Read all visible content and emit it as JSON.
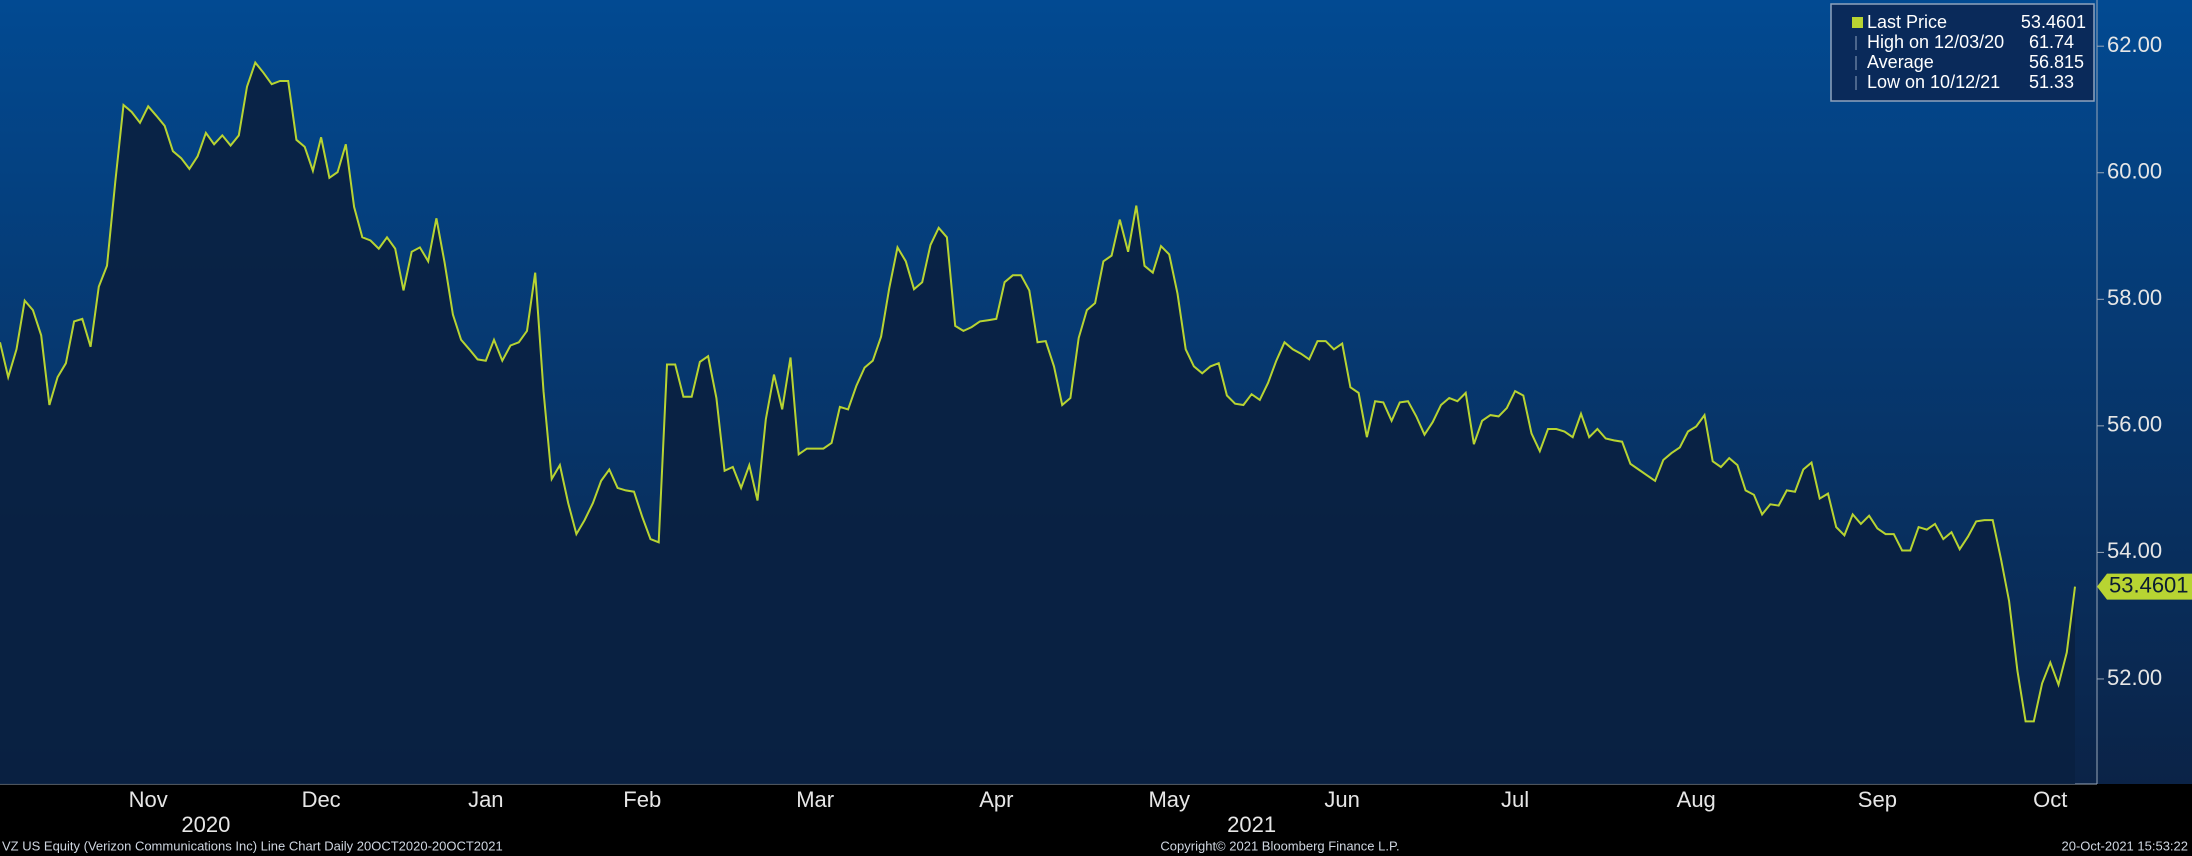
{
  "chart_data": {
    "type": "line",
    "series": [
      {
        "name": "Last Price",
        "color": "#b8d432",
        "values": [
          57.32,
          56.77,
          57.21,
          57.98,
          57.83,
          57.43,
          56.33,
          56.77,
          56.99,
          57.65,
          57.69,
          57.25,
          58.2,
          58.53,
          59.86,
          61.07,
          60.96,
          60.79,
          61.05,
          60.9,
          60.74,
          60.34,
          60.23,
          60.06,
          60.26,
          60.63,
          60.45,
          60.59,
          60.43,
          60.59,
          61.36,
          61.74,
          61.58,
          61.4,
          61.45,
          61.45,
          60.52,
          60.41,
          60.03,
          60.56,
          59.92,
          60.01,
          60.45,
          59.46,
          58.98,
          58.93,
          58.8,
          58.98,
          58.8,
          58.14,
          58.75,
          58.82,
          58.6,
          59.28,
          58.58,
          57.76,
          57.36,
          57.21,
          57.05,
          57.03,
          57.36,
          57.03,
          57.27,
          57.32,
          57.5,
          58.42,
          56.55,
          55.16,
          55.38,
          54.78,
          54.29,
          54.51,
          54.78,
          55.13,
          55.31,
          55.02,
          54.98,
          54.96,
          54.56,
          54.21,
          54.16,
          56.97,
          56.97,
          56.46,
          56.46,
          57.01,
          57.1,
          56.44,
          55.29,
          55.35,
          55.02,
          55.38,
          54.82,
          56.1,
          56.81,
          56.26,
          57.08,
          55.55,
          55.64,
          55.64,
          55.64,
          55.73,
          56.3,
          56.26,
          56.63,
          56.92,
          57.03,
          57.41,
          58.18,
          58.82,
          58.6,
          58.16,
          58.27,
          58.86,
          59.13,
          58.98,
          57.58,
          57.5,
          57.56,
          57.65,
          57.67,
          57.69,
          58.27,
          58.38,
          58.38,
          58.14,
          57.32,
          57.34,
          56.94,
          56.33,
          56.44,
          57.39,
          57.83,
          57.94,
          58.6,
          58.69,
          59.26,
          58.75,
          59.48,
          58.53,
          58.42,
          58.84,
          58.71,
          58.09,
          57.21,
          56.94,
          56.83,
          56.94,
          56.99,
          56.48,
          56.35,
          56.33,
          56.5,
          56.41,
          56.68,
          57.03,
          57.32,
          57.21,
          57.14,
          57.05,
          57.34,
          57.34,
          57.21,
          57.3,
          56.61,
          56.52,
          55.82,
          56.39,
          56.37,
          56.08,
          56.37,
          56.39,
          56.15,
          55.86,
          56.06,
          56.33,
          56.44,
          56.39,
          56.52,
          55.71,
          56.08,
          56.17,
          56.15,
          56.28,
          56.55,
          56.48,
          55.88,
          55.6,
          55.95,
          55.95,
          55.91,
          55.82,
          56.19,
          55.82,
          55.95,
          55.8,
          55.77,
          55.75,
          55.4,
          55.31,
          55.22,
          55.13,
          55.46,
          55.57,
          55.66,
          55.91,
          55.99,
          56.17,
          55.44,
          55.35,
          55.49,
          55.38,
          54.98,
          54.91,
          54.6,
          54.76,
          54.74,
          54.98,
          54.96,
          55.31,
          55.42,
          54.85,
          54.93,
          54.4,
          54.27,
          54.6,
          54.45,
          54.58,
          54.38,
          54.29,
          54.29,
          54.03,
          54.03,
          54.4,
          54.36,
          54.45,
          54.21,
          54.32,
          54.05,
          54.25,
          54.49,
          54.51,
          54.51,
          53.9,
          53.23,
          52.13,
          51.33,
          51.33,
          51.93,
          52.26,
          51.91,
          52.42,
          53.4601
        ]
      }
    ],
    "stats": [
      {
        "label": "High on 12/03/20",
        "value": 61.74
      },
      {
        "label": "Average",
        "value": 56.815
      },
      {
        "label": "Low on 10/12/21",
        "value": 51.33
      }
    ],
    "xlim": [
      0,
      252
    ],
    "xticks": [
      {
        "value": 18,
        "label": "Nov"
      },
      {
        "value": 39,
        "label": "Dec"
      },
      {
        "value": 59,
        "label": "Jan"
      },
      {
        "value": 78,
        "label": "Feb"
      },
      {
        "value": 99,
        "label": "Mar"
      },
      {
        "value": 121,
        "label": "Apr"
      },
      {
        "value": 142,
        "label": "May"
      },
      {
        "value": 163,
        "label": "Jun"
      },
      {
        "value": 184,
        "label": "Jul"
      },
      {
        "value": 206,
        "label": "Aug"
      },
      {
        "value": 228,
        "label": "Sep"
      },
      {
        "value": 249,
        "label": "Oct"
      }
    ],
    "year_ticks": [
      {
        "value": 25,
        "label": "2020"
      },
      {
        "value": 152,
        "label": "2021"
      }
    ],
    "ylim": [
      50.34,
      62.73
    ],
    "yticks": [
      {
        "value": 52,
        "label": "52.00"
      },
      {
        "value": 54,
        "label": "54.00"
      },
      {
        "value": 56,
        "label": "56.00"
      },
      {
        "value": 58,
        "label": "58.00"
      },
      {
        "value": 60,
        "label": "60.00"
      },
      {
        "value": 62,
        "label": "62.00"
      }
    ],
    "footer_left": "VZ US Equity (Verizon Communications Inc) Line Chart  Daily 20OCT2020-20OCT2021",
    "footer_center": "Copyright© 2021 Bloomberg Finance L.P.",
    "footer_right": "20-Oct-2021 15:53:22"
  }
}
